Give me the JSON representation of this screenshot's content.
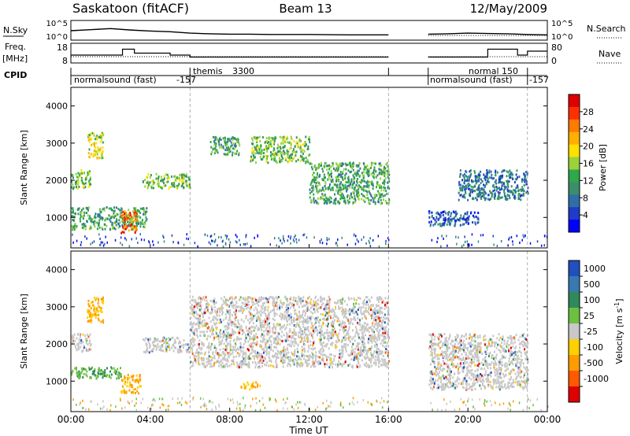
{
  "header": {
    "title_left": "Saskatoon (fitACF)",
    "title_center": "Beam 13",
    "title_right": "12/May/2009"
  },
  "panel_labels": {
    "nsky": "N.Sky",
    "nsearch": "N.Search",
    "freq": "Freq.",
    "freq_unit": "[MHz]",
    "nave": "Nave",
    "cpid": "CPID"
  },
  "chart_data": [
    {
      "type": "line",
      "name": "noise",
      "yscale": "log",
      "yticks_left": [
        "10^5",
        "10^0"
      ],
      "yticks_right": [
        "10^5",
        "10^0"
      ],
      "legend_left": "N.Sky",
      "legend_right": "N.Search",
      "x": [
        0,
        1,
        2,
        3,
        4,
        5,
        6,
        7,
        8,
        9,
        10,
        12,
        14,
        16,
        18,
        19,
        20,
        21,
        22,
        23,
        24
      ],
      "series": [
        {
          "name": "N.Sky",
          "values": [
            2.5,
            2.8,
            3.1,
            2.7,
            2.4,
            2.2,
            1.8,
            1.6,
            1.5,
            1.5,
            1.4,
            1.4,
            1.3,
            1.3,
            1.5,
            1.6,
            1.8,
            1.7,
            1.6,
            1.4,
            1.3
          ]
        }
      ]
    },
    {
      "type": "line",
      "name": "frequency",
      "ylabel": "Freq. [MHz]",
      "ylim_left": [
        8,
        18
      ],
      "ylim_right": [
        0,
        80
      ],
      "yticks_left": [
        "18",
        "8"
      ],
      "yticks_right": [
        "80",
        "0"
      ],
      "x": [
        0.0,
        1.0,
        2.6,
        3.2,
        4.2,
        5.0,
        6.0,
        8.0,
        12.0,
        16.0,
        18.0,
        19.0,
        20.5,
        21.0,
        22.5,
        23.0,
        24.0
      ],
      "series": [
        {
          "name": "Freq.",
          "values": [
            12,
            12,
            15,
            13,
            13,
            12,
            11,
            11,
            11,
            11,
            11,
            11,
            11,
            15,
            12,
            14,
            14
          ]
        }
      ]
    },
    {
      "type": "table",
      "name": "cpid",
      "entries": [
        {
          "start": 0.0,
          "end": 6.0,
          "label": "normalsound (fast)",
          "id": "-157"
        },
        {
          "start": 6.0,
          "end": 16.0,
          "label": "themis",
          "id": "3300"
        },
        {
          "start": 18.0,
          "end": 23.0,
          "label": "normalsound (fast)",
          "id": "normal 150"
        },
        {
          "start": 23.0,
          "end": 24.0,
          "label": "",
          "id": "-157"
        }
      ]
    },
    {
      "type": "heatmap",
      "name": "power",
      "xlabel": "",
      "ylabel": "Slant Range [km]",
      "xlim": [
        0,
        24
      ],
      "ylim": [
        180,
        4500
      ],
      "yticks": [
        1000,
        2000,
        3000,
        4000
      ],
      "colorbar": {
        "label": "Power [dB]",
        "range": [
          0,
          32
        ],
        "ticks": [
          4,
          8,
          12,
          16,
          20,
          24,
          28
        ],
        "colors": [
          "#0000ff",
          "#1e3cc8",
          "#2f6fa8",
          "#3a8f6a",
          "#2ea84a",
          "#9ad23a",
          "#ffe000",
          "#ffb000",
          "#ff7a00",
          "#ff3000",
          "#e00000"
        ]
      },
      "echo_regions": [
        {
          "t0": 0.0,
          "t1": 1.0,
          "r0": 1800,
          "r1": 2300,
          "value": 14
        },
        {
          "t0": 0.8,
          "t1": 1.6,
          "r0": 2600,
          "r1": 3300,
          "value": 18
        },
        {
          "t0": 0.0,
          "t1": 3.8,
          "r0": 700,
          "r1": 1300,
          "value": 12
        },
        {
          "t0": 2.5,
          "t1": 3.3,
          "r0": 600,
          "r1": 1200,
          "value": 26
        },
        {
          "t0": 3.6,
          "t1": 6.0,
          "r0": 1800,
          "r1": 2200,
          "value": 14
        },
        {
          "t0": 7.0,
          "t1": 8.5,
          "r0": 2700,
          "r1": 3200,
          "value": 12
        },
        {
          "t0": 9.0,
          "t1": 12.0,
          "r0": 2500,
          "r1": 3200,
          "value": 14
        },
        {
          "t0": 12.0,
          "t1": 16.0,
          "r0": 1400,
          "r1": 2500,
          "value": 12
        },
        {
          "t0": 18.0,
          "t1": 20.5,
          "r0": 800,
          "r1": 1200,
          "value": 6
        },
        {
          "t0": 19.5,
          "t1": 23.0,
          "r0": 1500,
          "r1": 2300,
          "value": 8
        }
      ]
    },
    {
      "type": "heatmap",
      "name": "velocity",
      "xlabel": "Time UT",
      "ylabel": "Slant Range [km]",
      "xlim": [
        0,
        24
      ],
      "ylim": [
        180,
        4500
      ],
      "yticks": [
        1000,
        2000,
        3000,
        4000
      ],
      "xticks": [
        "00:00",
        "04:00",
        "08:00",
        "12:00",
        "16:00",
        "20:00",
        "00:00"
      ],
      "colorbar": {
        "label": "Velocity [m s^-1]",
        "ticks": [
          "1000",
          "500",
          "100",
          "25",
          "-25",
          "-100",
          "-500",
          "-1000"
        ],
        "colors": [
          "#2050c0",
          "#3a78b0",
          "#2e8a5a",
          "#6cc040",
          "#c8c8c8",
          "#ffd000",
          "#ff9c00",
          "#ff5a00",
          "#e00000"
        ]
      },
      "echo_regions": [
        {
          "t0": 0.0,
          "t1": 1.0,
          "r0": 1800,
          "r1": 2300,
          "value": 0
        },
        {
          "t0": 0.8,
          "t1": 1.6,
          "r0": 2600,
          "r1": 3300,
          "value": -300
        },
        {
          "t0": 0.0,
          "t1": 2.5,
          "r0": 1100,
          "r1": 1400,
          "value": 200
        },
        {
          "t0": 2.5,
          "t1": 3.5,
          "r0": 700,
          "r1": 1200,
          "value": -300
        },
        {
          "t0": 3.6,
          "t1": 6.0,
          "r0": 1800,
          "r1": 2200,
          "value": 0
        },
        {
          "t0": 6.0,
          "t1": 16.0,
          "r0": 1400,
          "r1": 3300,
          "value": 0
        },
        {
          "t0": 8.5,
          "t1": 9.5,
          "r0": 800,
          "r1": 1000,
          "value": -300
        },
        {
          "t0": 18.0,
          "t1": 23.0,
          "r0": 800,
          "r1": 2300,
          "value": 0
        }
      ]
    }
  ],
  "axis": {
    "xticks": [
      "00:00",
      "04:00",
      "08:00",
      "12:00",
      "16:00",
      "20:00",
      "00:00"
    ],
    "xlabel": "Time UT",
    "ylabel": "Slant Range [km]",
    "yticks": [
      "1000",
      "2000",
      "3000",
      "4000"
    ]
  },
  "colorbars": {
    "power_label": "Power [dB]",
    "power_ticks": [
      "28",
      "24",
      "20",
      "16",
      "12",
      "8",
      "4"
    ],
    "velocity_label_main": "Velocity [m s",
    "velocity_label_sup": "-1",
    "velocity_label_end": "]",
    "velocity_ticks": [
      "1000",
      "500",
      "100",
      "25",
      "-25",
      "-100",
      "-500",
      "-1000"
    ]
  }
}
